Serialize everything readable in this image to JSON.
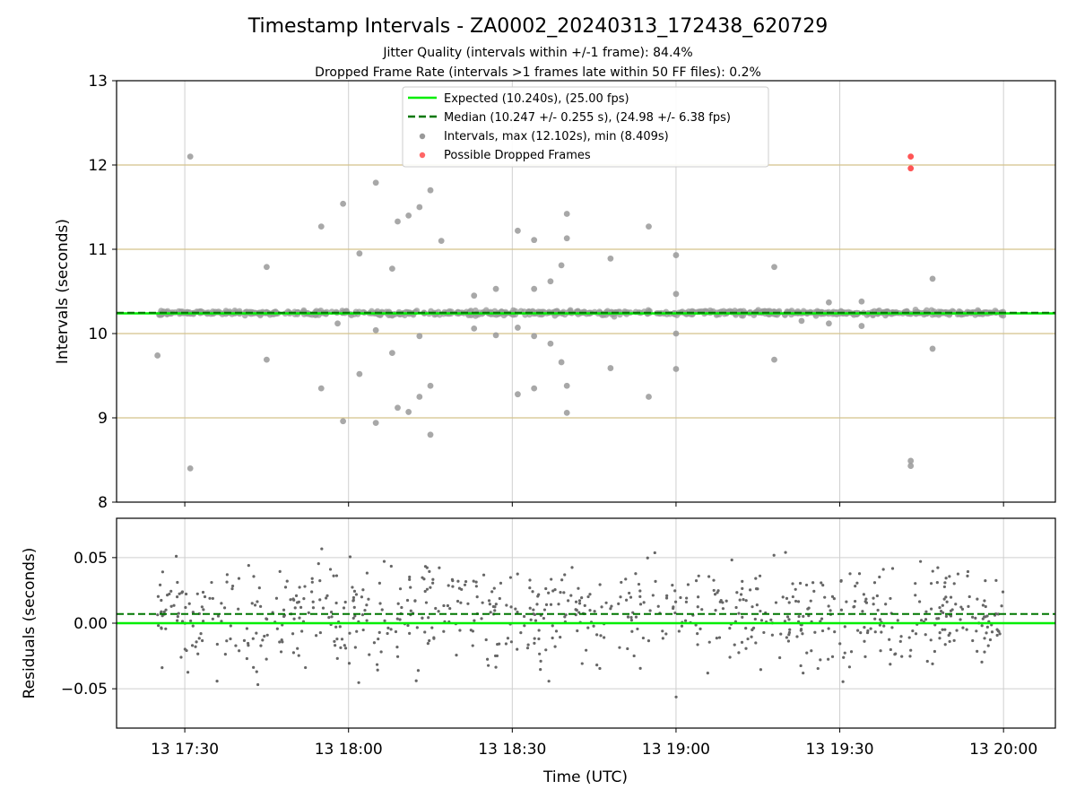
{
  "title": "Timestamp Intervals - ZA0002_20240313_172438_620729",
  "subtitle1": "Jitter Quality (intervals within +/-1 frame): 84.4%",
  "subtitle2": "Dropped Frame Rate (intervals >1 frames late within 50 FF files): 0.2%",
  "colors": {
    "expected": "#00ee00",
    "median": "#007700",
    "intervals": "#999999",
    "dropped": "#ff5555",
    "residuals": "#666666",
    "hband": "#d4c28a",
    "grid": "#cfcfcf"
  },
  "chart_data": [
    {
      "type": "scatter",
      "ylabel": "Intervals (seconds)",
      "ylim": [
        8,
        13
      ],
      "yticks": [
        "8",
        "9",
        "10",
        "11",
        "12",
        "13"
      ],
      "grid": true,
      "legend_placement": "upper-center",
      "x_unit": "minutes after 17:30 UTC",
      "legend": [
        "Expected (10.240s), (25.00 fps)",
        "Median (10.247 +/- 0.255 s), (24.98 +/- 6.38 fps)",
        "Intervals, max (12.102s), min (8.409s)",
        "Possible Dropped Frames"
      ],
      "expected": 10.24,
      "median": 10.247,
      "outliers": [
        [
          -5,
          9.74
        ],
        [
          1,
          12.1
        ],
        [
          1,
          8.4
        ],
        [
          15,
          10.79
        ],
        [
          15,
          9.69
        ],
        [
          25,
          9.35
        ],
        [
          25,
          11.27
        ],
        [
          28,
          10.12
        ],
        [
          29,
          11.54
        ],
        [
          29,
          8.96
        ],
        [
          32,
          10.95
        ],
        [
          32,
          9.52
        ],
        [
          35,
          11.79
        ],
        [
          35,
          8.94
        ],
        [
          35,
          10.04
        ],
        [
          38,
          10.77
        ],
        [
          38,
          9.77
        ],
        [
          39,
          11.33
        ],
        [
          39,
          9.12
        ],
        [
          41,
          11.4
        ],
        [
          41,
          9.07
        ],
        [
          43,
          11.5
        ],
        [
          43,
          9.25
        ],
        [
          43,
          9.97
        ],
        [
          45,
          11.7
        ],
        [
          45,
          8.8
        ],
        [
          45,
          9.38
        ],
        [
          47,
          11.1
        ],
        [
          53,
          10.45
        ],
        [
          53,
          10.06
        ],
        [
          57,
          10.53
        ],
        [
          57,
          9.98
        ],
        [
          61,
          10.07
        ],
        [
          61,
          11.22
        ],
        [
          61,
          9.28
        ],
        [
          64,
          11.11
        ],
        [
          64,
          9.35
        ],
        [
          64,
          9.97
        ],
        [
          64,
          10.53
        ],
        [
          67,
          10.62
        ],
        [
          67,
          9.88
        ],
        [
          69,
          10.81
        ],
        [
          69,
          9.66
        ],
        [
          70,
          11.42
        ],
        [
          70,
          11.13
        ],
        [
          70,
          9.38
        ],
        [
          70,
          9.06
        ],
        [
          78,
          10.89
        ],
        [
          78,
          9.59
        ],
        [
          85,
          11.27
        ],
        [
          85,
          9.25
        ],
        [
          90,
          10.93
        ],
        [
          90,
          9.58
        ],
        [
          90,
          10.47
        ],
        [
          90,
          10.0
        ],
        [
          108,
          10.79
        ],
        [
          108,
          9.69
        ],
        [
          113,
          10.15
        ],
        [
          118,
          10.37
        ],
        [
          118,
          10.12
        ],
        [
          124,
          10.38
        ],
        [
          124,
          10.09
        ],
        [
          133,
          8.43
        ],
        [
          133,
          8.49
        ],
        [
          137,
          10.65
        ],
        [
          137,
          9.82
        ]
      ],
      "dropped": [
        [
          133,
          12.1
        ],
        [
          133,
          11.96
        ]
      ]
    },
    {
      "type": "scatter",
      "xlabel": "Time (UTC)",
      "ylabel": "Residuals (seconds)",
      "ylim": [
        -0.08,
        0.08
      ],
      "yticks": [
        "0.05",
        "0.00",
        "−0.05"
      ],
      "xticks": [
        "13 17:30",
        "13 18:00",
        "13 18:30",
        "13 19:00",
        "13 19:30",
        "13 20:00"
      ],
      "xlim": [
        -12.5,
        159.5
      ],
      "expected": 0.0,
      "median": 0.007,
      "grid": true,
      "x_range_minutes": [
        -5,
        150
      ],
      "point_count": 760
    }
  ]
}
